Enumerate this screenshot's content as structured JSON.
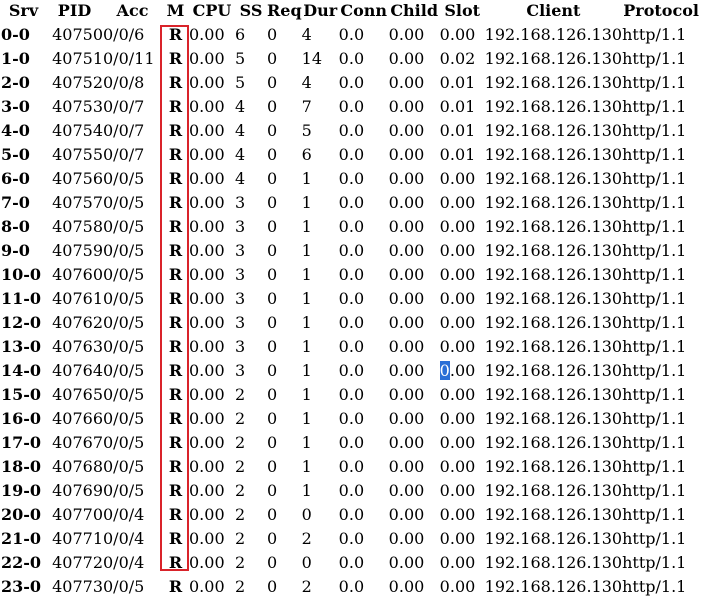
{
  "headers": {
    "srv": "Srv",
    "pid": "PID",
    "acc": "Acc",
    "m": "M",
    "cpu": "CPU",
    "ss": "SS",
    "req": "Req",
    "dur": "Dur",
    "conn": "Conn",
    "child": "Child",
    "slot": "Slot",
    "client": "Client",
    "protocol": "Protocol"
  },
  "rows": [
    {
      "srv": "0-0",
      "pid": "40750",
      "acc": "0/0/6",
      "m": "R",
      "cpu": "0.00",
      "ss": "6",
      "req": "0",
      "dur": "4",
      "conn": "0.0",
      "child": "0.00",
      "slot": "0.00",
      "client": "192.168.126.130",
      "protocol": "http/1.1"
    },
    {
      "srv": "1-0",
      "pid": "40751",
      "acc": "0/0/11",
      "m": "R",
      "cpu": "0.00",
      "ss": "5",
      "req": "0",
      "dur": "14",
      "conn": "0.0",
      "child": "0.00",
      "slot": "0.02",
      "client": "192.168.126.130",
      "protocol": "http/1.1"
    },
    {
      "srv": "2-0",
      "pid": "40752",
      "acc": "0/0/8",
      "m": "R",
      "cpu": "0.00",
      "ss": "5",
      "req": "0",
      "dur": "4",
      "conn": "0.0",
      "child": "0.00",
      "slot": "0.01",
      "client": "192.168.126.130",
      "protocol": "http/1.1"
    },
    {
      "srv": "3-0",
      "pid": "40753",
      "acc": "0/0/7",
      "m": "R",
      "cpu": "0.00",
      "ss": "4",
      "req": "0",
      "dur": "7",
      "conn": "0.0",
      "child": "0.00",
      "slot": "0.01",
      "client": "192.168.126.130",
      "protocol": "http/1.1"
    },
    {
      "srv": "4-0",
      "pid": "40754",
      "acc": "0/0/7",
      "m": "R",
      "cpu": "0.00",
      "ss": "4",
      "req": "0",
      "dur": "5",
      "conn": "0.0",
      "child": "0.00",
      "slot": "0.01",
      "client": "192.168.126.130",
      "protocol": "http/1.1"
    },
    {
      "srv": "5-0",
      "pid": "40755",
      "acc": "0/0/7",
      "m": "R",
      "cpu": "0.00",
      "ss": "4",
      "req": "0",
      "dur": "6",
      "conn": "0.0",
      "child": "0.00",
      "slot": "0.01",
      "client": "192.168.126.130",
      "protocol": "http/1.1"
    },
    {
      "srv": "6-0",
      "pid": "40756",
      "acc": "0/0/5",
      "m": "R",
      "cpu": "0.00",
      "ss": "4",
      "req": "0",
      "dur": "1",
      "conn": "0.0",
      "child": "0.00",
      "slot": "0.00",
      "client": "192.168.126.130",
      "protocol": "http/1.1"
    },
    {
      "srv": "7-0",
      "pid": "40757",
      "acc": "0/0/5",
      "m": "R",
      "cpu": "0.00",
      "ss": "3",
      "req": "0",
      "dur": "1",
      "conn": "0.0",
      "child": "0.00",
      "slot": "0.00",
      "client": "192.168.126.130",
      "protocol": "http/1.1"
    },
    {
      "srv": "8-0",
      "pid": "40758",
      "acc": "0/0/5",
      "m": "R",
      "cpu": "0.00",
      "ss": "3",
      "req": "0",
      "dur": "1",
      "conn": "0.0",
      "child": "0.00",
      "slot": "0.00",
      "client": "192.168.126.130",
      "protocol": "http/1.1"
    },
    {
      "srv": "9-0",
      "pid": "40759",
      "acc": "0/0/5",
      "m": "R",
      "cpu": "0.00",
      "ss": "3",
      "req": "0",
      "dur": "1",
      "conn": "0.0",
      "child": "0.00",
      "slot": "0.00",
      "client": "192.168.126.130",
      "protocol": "http/1.1"
    },
    {
      "srv": "10-0",
      "pid": "40760",
      "acc": "0/0/5",
      "m": "R",
      "cpu": "0.00",
      "ss": "3",
      "req": "0",
      "dur": "1",
      "conn": "0.0",
      "child": "0.00",
      "slot": "0.00",
      "client": "192.168.126.130",
      "protocol": "http/1.1"
    },
    {
      "srv": "11-0",
      "pid": "40761",
      "acc": "0/0/5",
      "m": "R",
      "cpu": "0.00",
      "ss": "3",
      "req": "0",
      "dur": "1",
      "conn": "0.0",
      "child": "0.00",
      "slot": "0.00",
      "client": "192.168.126.130",
      "protocol": "http/1.1"
    },
    {
      "srv": "12-0",
      "pid": "40762",
      "acc": "0/0/5",
      "m": "R",
      "cpu": "0.00",
      "ss": "3",
      "req": "0",
      "dur": "1",
      "conn": "0.0",
      "child": "0.00",
      "slot": "0.00",
      "client": "192.168.126.130",
      "protocol": "http/1.1"
    },
    {
      "srv": "13-0",
      "pid": "40763",
      "acc": "0/0/5",
      "m": "R",
      "cpu": "0.00",
      "ss": "3",
      "req": "0",
      "dur": "1",
      "conn": "0.0",
      "child": "0.00",
      "slot": "0.00",
      "client": "192.168.126.130",
      "protocol": "http/1.1"
    },
    {
      "srv": "14-0",
      "pid": "40764",
      "acc": "0/0/5",
      "m": "R",
      "cpu": "0.00",
      "ss": "3",
      "req": "0",
      "dur": "1",
      "conn": "0.0",
      "child": "0.00",
      "slot": "0.00",
      "client": "192.168.126.130",
      "protocol": "http/1.1"
    },
    {
      "srv": "15-0",
      "pid": "40765",
      "acc": "0/0/5",
      "m": "R",
      "cpu": "0.00",
      "ss": "2",
      "req": "0",
      "dur": "1",
      "conn": "0.0",
      "child": "0.00",
      "slot": "0.00",
      "client": "192.168.126.130",
      "protocol": "http/1.1"
    },
    {
      "srv": "16-0",
      "pid": "40766",
      "acc": "0/0/5",
      "m": "R",
      "cpu": "0.00",
      "ss": "2",
      "req": "0",
      "dur": "1",
      "conn": "0.0",
      "child": "0.00",
      "slot": "0.00",
      "client": "192.168.126.130",
      "protocol": "http/1.1"
    },
    {
      "srv": "17-0",
      "pid": "40767",
      "acc": "0/0/5",
      "m": "R",
      "cpu": "0.00",
      "ss": "2",
      "req": "0",
      "dur": "1",
      "conn": "0.0",
      "child": "0.00",
      "slot": "0.00",
      "client": "192.168.126.130",
      "protocol": "http/1.1"
    },
    {
      "srv": "18-0",
      "pid": "40768",
      "acc": "0/0/5",
      "m": "R",
      "cpu": "0.00",
      "ss": "2",
      "req": "0",
      "dur": "1",
      "conn": "0.0",
      "child": "0.00",
      "slot": "0.00",
      "client": "192.168.126.130",
      "protocol": "http/1.1"
    },
    {
      "srv": "19-0",
      "pid": "40769",
      "acc": "0/0/5",
      "m": "R",
      "cpu": "0.00",
      "ss": "2",
      "req": "0",
      "dur": "1",
      "conn": "0.0",
      "child": "0.00",
      "slot": "0.00",
      "client": "192.168.126.130",
      "protocol": "http/1.1"
    },
    {
      "srv": "20-0",
      "pid": "40770",
      "acc": "0/0/4",
      "m": "R",
      "cpu": "0.00",
      "ss": "2",
      "req": "0",
      "dur": "0",
      "conn": "0.0",
      "child": "0.00",
      "slot": "0.00",
      "client": "192.168.126.130",
      "protocol": "http/1.1"
    },
    {
      "srv": "21-0",
      "pid": "40771",
      "acc": "0/0/4",
      "m": "R",
      "cpu": "0.00",
      "ss": "2",
      "req": "0",
      "dur": "2",
      "conn": "0.0",
      "child": "0.00",
      "slot": "0.00",
      "client": "192.168.126.130",
      "protocol": "http/1.1"
    },
    {
      "srv": "22-0",
      "pid": "40772",
      "acc": "0/0/4",
      "m": "R",
      "cpu": "0.00",
      "ss": "2",
      "req": "0",
      "dur": "0",
      "conn": "0.0",
      "child": "0.00",
      "slot": "0.00",
      "client": "192.168.126.130",
      "protocol": "http/1.1"
    },
    {
      "srv": "23-0",
      "pid": "40773",
      "acc": "0/0/5",
      "m": "R",
      "cpu": "0.00",
      "ss": "2",
      "req": "0",
      "dur": "2",
      "conn": "0.0",
      "child": "0.00",
      "slot": "0.00",
      "client": "192.168.126.130",
      "protocol": "http/1.1"
    }
  ],
  "selection": {
    "row": 14,
    "column": "slot",
    "selected_text": "0",
    "rest_text": ".00"
  },
  "colors": {
    "highlight_border": "#d9232a",
    "selection_bg": "#2a6fd6"
  }
}
